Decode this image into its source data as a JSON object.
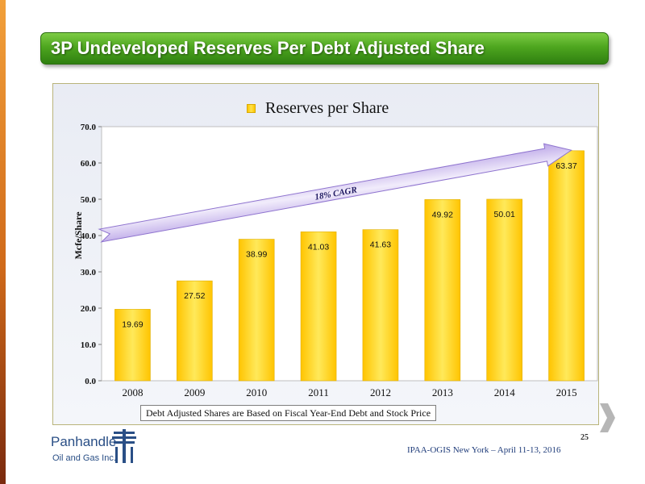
{
  "slide": {
    "title": "3P Undeveloped Reserves Per Debt Adjusted Share",
    "footnote": "Debt Adjusted Shares are Based on Fiscal Year-End Debt and Stock Price",
    "page_number": "25",
    "footer": "IPAA-OGIS New York – April 11-13, 2016",
    "logo": {
      "line1": "Panhandle",
      "line2": "Oil and Gas Inc."
    },
    "colors": {
      "title_bar": "#4ea61f",
      "bar": "#ffd21a",
      "left_strip": "#d06a1a",
      "arrow": "#c9b3ec"
    }
  },
  "chart_data": {
    "type": "bar",
    "categories": [
      "2008",
      "2009",
      "2010",
      "2011",
      "2012",
      "2013",
      "2014",
      "2015"
    ],
    "series": [
      {
        "name": "Reserves per Share",
        "values": [
          19.69,
          27.52,
          38.99,
          41.03,
          41.63,
          49.92,
          50.01,
          63.37
        ]
      }
    ],
    "value_labels": [
      "19.69",
      "27.52",
      "38.99",
      "41.03",
      "41.63",
      "49.92",
      "50.01",
      "63.37"
    ],
    "ylabel": "Mcfe/Share",
    "xlabel": "",
    "ylim": [
      0,
      70
    ],
    "yticks": [
      "0.0",
      "10.0",
      "20.0",
      "30.0",
      "40.0",
      "50.0",
      "60.0",
      "70.0"
    ],
    "grid": false,
    "legend_position": "top-center",
    "annotation": {
      "text": "18% CAGR",
      "shape": "upward arrow spanning 2008 to 2015"
    }
  }
}
